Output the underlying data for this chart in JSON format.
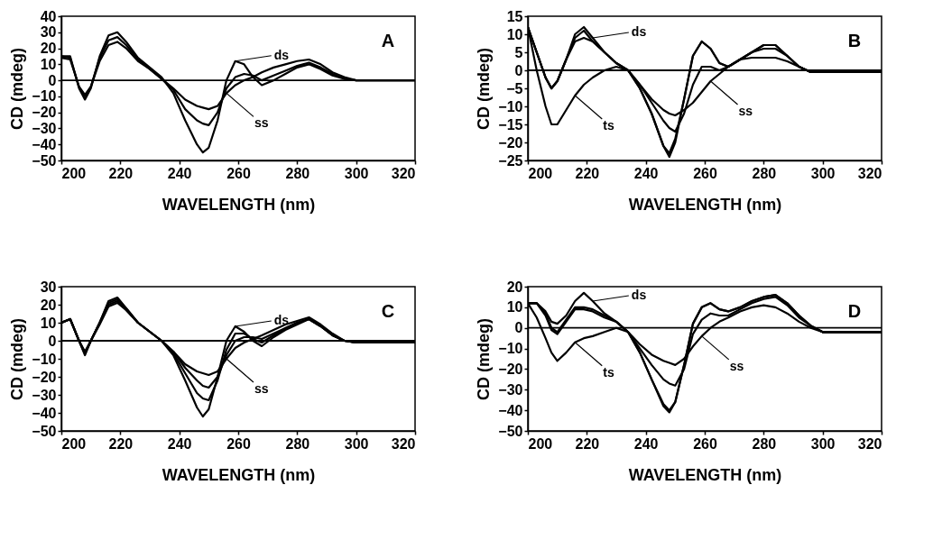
{
  "chart_data": [
    {
      "type": "line",
      "xlabel": "WAVELENGTH (nm)",
      "ylabel": "CD (mdeg)",
      "xlim": [
        200,
        320
      ],
      "xticks": [
        200,
        220,
        240,
        260,
        280,
        300,
        320
      ],
      "ylim": [
        -50,
        40
      ],
      "yticks": [
        -50,
        -40,
        -30,
        -20,
        -10,
        0,
        10,
        20,
        30,
        40
      ],
      "x": [
        200,
        203,
        206,
        208,
        210,
        213,
        216,
        219,
        222,
        226,
        230,
        234,
        238,
        242,
        246,
        248,
        250,
        253,
        256,
        259,
        262,
        265,
        268,
        272,
        276,
        280,
        284,
        288,
        292,
        296,
        300,
        310,
        320
      ],
      "series": [
        {
          "color": "#000000",
          "values": [
            15,
            15,
            -5,
            -12,
            -5,
            15,
            28,
            30,
            24,
            14,
            8,
            2,
            -8,
            -25,
            -40,
            -45,
            -42,
            -25,
            0,
            12,
            10,
            2,
            -3,
            0,
            4,
            8,
            10,
            7,
            3,
            1,
            0,
            0,
            0
          ]
        },
        {
          "color": "#000000",
          "values": [
            15,
            14,
            -4,
            -10,
            -4,
            14,
            25,
            27,
            22,
            13,
            7,
            1,
            -6,
            -18,
            -25,
            -27,
            -28,
            -20,
            -5,
            2,
            4,
            3,
            0,
            3,
            6,
            9,
            11,
            8,
            4,
            1,
            0,
            0,
            0
          ]
        },
        {
          "color": "#000000",
          "values": [
            14,
            13,
            -4,
            -9,
            -4,
            12,
            22,
            24,
            20,
            12,
            7,
            1,
            -5,
            -12,
            -16,
            -17,
            -18,
            -16,
            -8,
            -3,
            0,
            2,
            5,
            8,
            10,
            12,
            13,
            10,
            5,
            2,
            0,
            0,
            0
          ]
        }
      ],
      "ref_lines": [
        {
          "axis": "y",
          "value": 0
        }
      ],
      "annotations": [
        "A",
        {
          "text": "ds",
          "x": 259,
          "y": 12
        },
        {
          "text": "ss",
          "x": 256,
          "y": -8
        }
      ]
    },
    {
      "type": "line",
      "xlabel": "WAVELENGTH (nm)",
      "ylabel": "CD (mdeg)",
      "xlim": [
        200,
        320
      ],
      "xticks": [
        200,
        220,
        240,
        260,
        280,
        300,
        320
      ],
      "ylim": [
        -25,
        15
      ],
      "yticks": [
        -25,
        -20,
        -15,
        -10,
        -5,
        0,
        5,
        10,
        15
      ],
      "x": [
        200,
        203,
        206,
        208,
        210,
        213,
        216,
        219,
        222,
        226,
        230,
        234,
        238,
        242,
        246,
        248,
        250,
        253,
        256,
        259,
        262,
        265,
        268,
        272,
        276,
        280,
        284,
        288,
        292,
        296,
        300,
        310,
        320
      ],
      "series": [
        {
          "color": "#000000",
          "values": [
            12,
            5,
            -2,
            -5,
            -3,
            3,
            10,
            12,
            9,
            5,
            2,
            0,
            -5,
            -12,
            -21,
            -24,
            -20,
            -8,
            4,
            8,
            6,
            2,
            1,
            3,
            5,
            7,
            7,
            4,
            1,
            -0.5,
            -0.5,
            -0.5,
            -0.5
          ]
        },
        {
          "color": "#000000",
          "values": [
            12,
            5,
            -2,
            -5,
            -3,
            3,
            9,
            11,
            8,
            5,
            2,
            0,
            -4,
            -9,
            -14,
            -16,
            -17,
            -12,
            -4,
            1,
            1,
            0,
            1,
            3,
            5,
            6,
            6,
            4,
            1,
            -0.5,
            -0.5,
            -0.5,
            -0.5
          ]
        },
        {
          "color": "#000000",
          "values": [
            12,
            5,
            -2,
            -5,
            -3,
            3,
            8,
            9,
            8,
            5,
            2,
            0,
            -4,
            -8,
            -11,
            -12,
            -12.5,
            -11,
            -9,
            -6,
            -3,
            -1,
            1,
            3,
            3.5,
            3.5,
            3.5,
            2.5,
            1,
            -0.5,
            -0.5,
            -0.5,
            -0.5
          ]
        },
        {
          "color": "#000000",
          "values": [
            12,
            0,
            -10,
            -15,
            -15,
            -11,
            -7,
            -4,
            -2,
            0,
            1,
            0,
            -5,
            -12,
            -21,
            -23,
            -19,
            -8,
            4,
            8,
            6,
            2,
            1,
            3,
            5,
            7,
            7,
            4,
            1,
            -0.5,
            -0.5,
            -0.5,
            -0.5
          ]
        }
      ],
      "ref_lines": [
        {
          "axis": "y",
          "value": 0
        }
      ],
      "annotations": [
        "B",
        {
          "text": "ds",
          "x": 222,
          "y": 9
        },
        {
          "text": "ss",
          "x": 262,
          "y": -3
        },
        {
          "text": "ts",
          "x": 216,
          "y": -7
        }
      ]
    },
    {
      "type": "line",
      "xlabel": "WAVELENGTH (nm)",
      "ylabel": "CD (mdeg)",
      "xlim": [
        200,
        320
      ],
      "xticks": [
        200,
        220,
        240,
        260,
        280,
        300,
        320
      ],
      "ylim": [
        -50,
        30
      ],
      "yticks": [
        -50,
        -40,
        -30,
        -20,
        -10,
        0,
        10,
        20,
        30
      ],
      "x": [
        200,
        203,
        206,
        208,
        210,
        213,
        216,
        219,
        222,
        226,
        230,
        234,
        238,
        242,
        246,
        248,
        250,
        253,
        256,
        259,
        262,
        265,
        268,
        272,
        276,
        280,
        284,
        288,
        292,
        296,
        300,
        310,
        320
      ],
      "series": [
        {
          "color": "#000000",
          "values": [
            10,
            12,
            0,
            -8,
            0,
            10,
            22,
            24,
            18,
            10,
            5,
            0,
            -8,
            -22,
            -37,
            -42,
            -38,
            -20,
            0,
            8,
            5,
            0,
            -3,
            2,
            6,
            9,
            12,
            8,
            3,
            0,
            -1,
            -1,
            -1
          ]
        },
        {
          "color": "#000000",
          "values": [
            10,
            12,
            0,
            -7,
            0,
            10,
            21,
            23,
            18,
            10,
            5,
            0,
            -7,
            -18,
            -29,
            -32,
            -33,
            -22,
            -5,
            4,
            4,
            1,
            -1,
            3,
            7,
            10,
            12,
            8,
            3,
            0,
            -1,
            -1,
            -1
          ]
        },
        {
          "color": "#000000",
          "values": [
            10,
            12,
            0,
            -7,
            0,
            10,
            20,
            22,
            17,
            10,
            5,
            0,
            -6,
            -15,
            -22,
            -25,
            -26,
            -20,
            -8,
            0,
            2,
            2,
            1,
            4,
            7,
            10,
            12,
            8,
            3,
            0,
            -1,
            -1,
            -1
          ]
        },
        {
          "color": "#000000",
          "values": [
            10,
            12,
            0,
            -6,
            0,
            9,
            19,
            21,
            17,
            10,
            5,
            0,
            -6,
            -13,
            -17,
            -18,
            -19,
            -17,
            -10,
            -4,
            -1,
            1,
            3,
            6,
            9,
            11,
            13,
            9,
            4,
            0,
            -1,
            -1,
            -1
          ]
        }
      ],
      "ref_lines": [
        {
          "axis": "y",
          "value": 0
        }
      ],
      "annotations": [
        "C",
        {
          "text": "ds",
          "x": 259,
          "y": 8
        },
        {
          "text": "ss",
          "x": 256,
          "y": -10
        }
      ]
    },
    {
      "type": "line",
      "xlabel": "WAVELENGTH (nm)",
      "ylabel": "CD (mdeg)",
      "xlim": [
        200,
        320
      ],
      "xticks": [
        200,
        220,
        240,
        260,
        280,
        300,
        320
      ],
      "ylim": [
        -50,
        20
      ],
      "yticks": [
        -50,
        -40,
        -30,
        -20,
        -10,
        0,
        10,
        20
      ],
      "x": [
        200,
        203,
        206,
        208,
        210,
        213,
        216,
        219,
        222,
        226,
        230,
        234,
        238,
        242,
        246,
        248,
        250,
        253,
        256,
        259,
        262,
        265,
        268,
        272,
        276,
        280,
        284,
        288,
        292,
        296,
        300,
        310,
        320
      ],
      "series": [
        {
          "color": "#000000",
          "values": [
            12,
            12,
            8,
            3,
            2,
            6,
            13,
            17,
            13,
            7,
            3,
            -2,
            -12,
            -25,
            -38,
            -41,
            -36,
            -18,
            2,
            10,
            12,
            9,
            8,
            10,
            13,
            15,
            16,
            12,
            6,
            1,
            -2,
            -2,
            -2
          ]
        },
        {
          "color": "#000000",
          "values": [
            12,
            12,
            7,
            0,
            -2,
            4,
            10,
            10,
            9,
            6,
            3,
            -2,
            -10,
            -18,
            -25,
            -27,
            -28,
            -20,
            -3,
            4,
            7,
            6,
            6,
            9,
            12,
            14,
            15,
            11,
            5,
            1,
            -2,
            -2,
            -2
          ]
        },
        {
          "color": "#000000",
          "values": [
            12,
            12,
            6,
            -1,
            -3,
            3,
            9,
            9,
            8,
            5,
            3,
            -2,
            -8,
            -13,
            -16,
            -17,
            -18,
            -15,
            -9,
            -4,
            0,
            3,
            5,
            8,
            10,
            11,
            10,
            7,
            3,
            0,
            -2,
            -2,
            -2
          ]
        },
        {
          "color": "#000000",
          "values": [
            12,
            5,
            -5,
            -12,
            -16,
            -12,
            -7,
            -5,
            -4,
            -2,
            0,
            -2,
            -12,
            -25,
            -37,
            -40,
            -36,
            -18,
            2,
            10,
            12,
            9,
            8,
            10,
            13,
            15,
            16,
            12,
            6,
            1,
            -2,
            -2,
            -2
          ]
        }
      ],
      "ref_lines": [
        {
          "axis": "y",
          "value": 0
        }
      ],
      "annotations": [
        "D",
        {
          "text": "ds",
          "x": 222,
          "y": 13
        },
        {
          "text": "ss",
          "x": 259,
          "y": -4
        },
        {
          "text": "ts",
          "x": 216,
          "y": -7
        }
      ]
    }
  ]
}
